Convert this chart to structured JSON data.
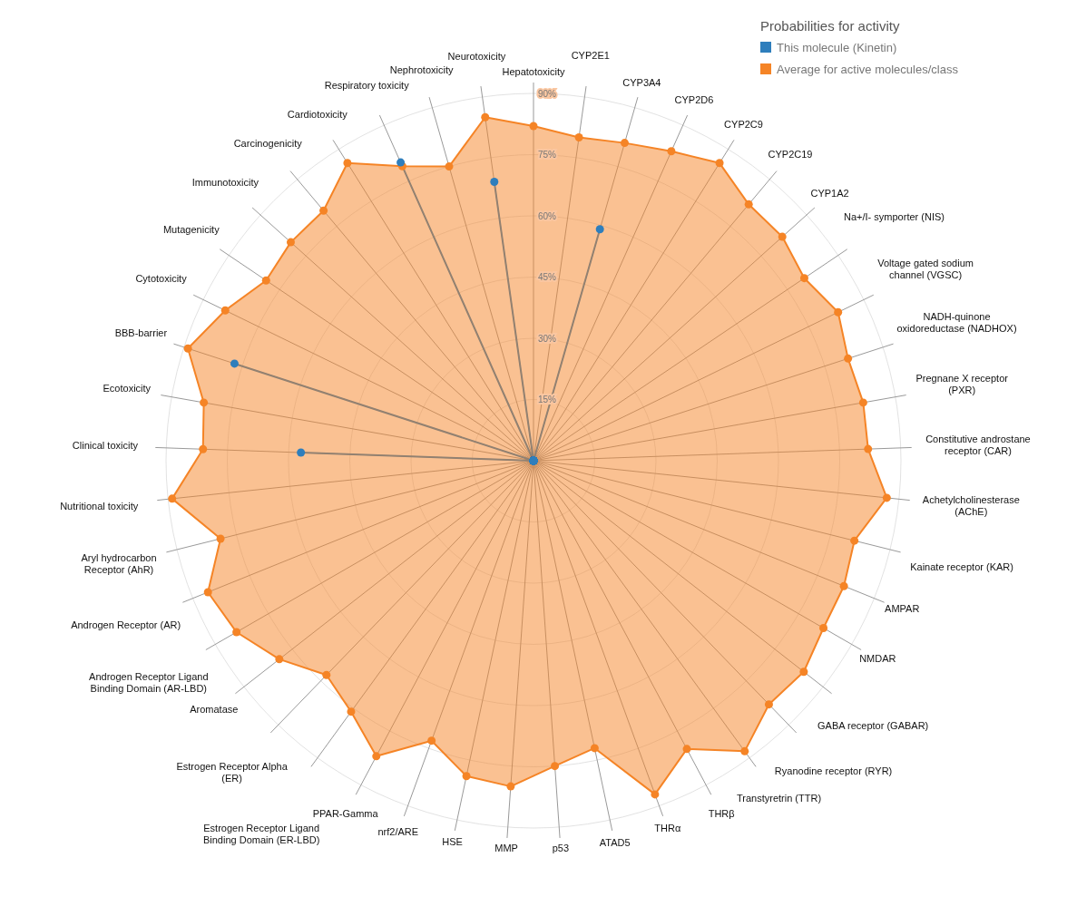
{
  "chart_data": {
    "type": "radar",
    "legend_title": "Probabilities for activity",
    "legend": "top right",
    "grid": true,
    "marker": "circle",
    "ylim": [
      0,
      90
    ],
    "yticks": [
      {
        "value": 15,
        "label": "15%"
      },
      {
        "value": 30,
        "label": "30%"
      },
      {
        "value": 45,
        "label": "45%"
      },
      {
        "value": 60,
        "label": "60%"
      },
      {
        "value": 75,
        "label": "75%"
      },
      {
        "value": 90,
        "label": "90%"
      }
    ],
    "categories": [
      "Hepatotoxicity",
      "CYP2E1",
      "CYP3A4",
      "CYP2D6",
      "CYP2C9",
      "CYP2C19",
      "CYP1A2",
      "Na+/I- symporter (NIS)",
      "Voltage gated sodium channel (VGSC)",
      "NADH-quinone oxidoreductase (NADHOX)",
      "Pregnane X receptor (PXR)",
      "Constitutive androstane receptor (CAR)",
      "Achetylcholinesterase (AChE)",
      "Kainate receptor (KAR)",
      "AMPAR",
      "NMDAR",
      "GABA receptor (GABAR)",
      "Ryanodine receptor (RYR)",
      "Transtyretrin (TTR)",
      "THRβ",
      "THRα",
      "ATAD5",
      "p53",
      "MMP",
      "HSE",
      "nrf2/ARE",
      "PPAR-Gamma",
      "Estrogen Receptor Ligand Binding Domain (ER-LBD)",
      "Estrogen Receptor Alpha (ER)",
      "Aromatase",
      "Androgen Receptor Ligand Binding Domain (AR-LBD)",
      "Androgen Receptor (AR)",
      "Aryl hydrocarbon Receptor (AhR)",
      "Nutritional toxicity",
      "Clinical toxicity",
      "Ecotoxicity",
      "BBB-barrier",
      "Cytotoxicity",
      "Mutagenicity",
      "Immunotoxicity",
      "Carcinogenicity",
      "Cardiotoxicity",
      "Respiratory toxicity",
      "Nephrotoxicity",
      "Neurotoxicity"
    ],
    "series": [
      {
        "name": "This molecule (Kinetin)",
        "color": "#2e7ebc",
        "values": [
          0,
          0,
          59,
          0,
          0,
          0,
          0,
          0,
          0,
          0,
          0,
          0,
          0,
          0,
          0,
          0,
          0,
          0,
          0,
          0,
          0,
          0,
          0,
          0,
          0,
          0,
          0,
          0,
          0,
          0,
          0,
          0,
          0,
          0,
          57,
          0,
          77,
          0,
          0,
          0,
          0,
          0,
          80,
          0,
          69
        ]
      },
      {
        "name": "Average for active molecules/class",
        "color": "#f58426",
        "values": [
          82,
          80,
          81,
          83,
          86,
          82,
          82,
          80,
          83,
          81,
          82,
          82,
          87,
          81,
          82,
          82,
          84,
          83,
          88,
          80,
          87,
          72,
          75,
          80,
          79,
          73,
          82,
          76,
          73,
          79,
          84,
          86,
          79,
          89,
          81,
          82,
          89,
          84,
          79,
          80,
          80,
          86,
          79,
          75,
          85
        ]
      }
    ]
  }
}
